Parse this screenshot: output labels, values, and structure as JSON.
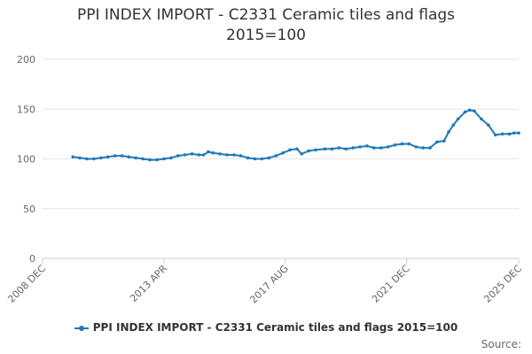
{
  "title_line1": "PPI INDEX IMPORT - C2331 Ceramic tiles and flags",
  "title_line2": "2015=100",
  "source_label": "Source:",
  "colors": {
    "series": "#1f7ab8",
    "grid": "#e6e6e6",
    "axis_text": "#666666"
  },
  "chart_data": {
    "type": "line",
    "title": "PPI INDEX IMPORT - C2331 Ceramic tiles and flags 2015=100",
    "xlabel": "",
    "ylabel": "",
    "ylim": [
      0,
      200
    ],
    "yticks": [
      0,
      50,
      100,
      150,
      200
    ],
    "xlim": [
      "2008 DEC",
      "2025 DEC"
    ],
    "xticks": [
      "2008 DEC",
      "2013 APR",
      "2017 AUG",
      "2021 DEC",
      "2025 DEC"
    ],
    "grid": true,
    "legend_position": "bottom",
    "series": [
      {
        "name": "PPI INDEX IMPORT - C2331 Ceramic tiles and flags 2015=100",
        "points": [
          [
            "2010 JAN",
            102
          ],
          [
            "2010 APR",
            101
          ],
          [
            "2010 JUL",
            100
          ],
          [
            "2010 OCT",
            100
          ],
          [
            "2011 JAN",
            101
          ],
          [
            "2011 APR",
            102
          ],
          [
            "2011 JUL",
            103
          ],
          [
            "2011 OCT",
            103
          ],
          [
            "2012 JAN",
            102
          ],
          [
            "2012 APR",
            101
          ],
          [
            "2012 JUL",
            100
          ],
          [
            "2012 OCT",
            99
          ],
          [
            "2013 JAN",
            99
          ],
          [
            "2013 APR",
            100
          ],
          [
            "2013 JUL",
            101
          ],
          [
            "2013 OCT",
            103
          ],
          [
            "2014 JAN",
            104
          ],
          [
            "2014 APR",
            105
          ],
          [
            "2014 JUL",
            104
          ],
          [
            "2014 SEP",
            104
          ],
          [
            "2014 NOV",
            107
          ],
          [
            "2015 JAN",
            106
          ],
          [
            "2015 APR",
            105
          ],
          [
            "2015 JUL",
            104
          ],
          [
            "2015 OCT",
            104
          ],
          [
            "2016 JAN",
            103
          ],
          [
            "2016 APR",
            101
          ],
          [
            "2016 JUL",
            100
          ],
          [
            "2016 OCT",
            100
          ],
          [
            "2017 JAN",
            101
          ],
          [
            "2017 APR",
            103
          ],
          [
            "2017 JUL",
            106
          ],
          [
            "2017 OCT",
            109
          ],
          [
            "2018 JAN",
            110
          ],
          [
            "2018 MAR",
            105
          ],
          [
            "2018 JUN",
            108
          ],
          [
            "2018 SEP",
            109
          ],
          [
            "2019 JAN",
            110
          ],
          [
            "2019 APR",
            110
          ],
          [
            "2019 JUL",
            111
          ],
          [
            "2019 OCT",
            110
          ],
          [
            "2020 JAN",
            111
          ],
          [
            "2020 APR",
            112
          ],
          [
            "2020 JUL",
            113
          ],
          [
            "2020 OCT",
            111
          ],
          [
            "2021 JAN",
            111
          ],
          [
            "2021 APR",
            112
          ],
          [
            "2021 JUL",
            114
          ],
          [
            "2021 OCT",
            115
          ],
          [
            "2022 JAN",
            115
          ],
          [
            "2022 APR",
            112
          ],
          [
            "2022 JUL",
            111
          ],
          [
            "2022 OCT",
            111
          ],
          [
            "2023 JAN",
            117
          ],
          [
            "2023 APR",
            118
          ],
          [
            "2023 JUN",
            127
          ],
          [
            "2023 AUG",
            134
          ],
          [
            "2023 OCT",
            140
          ],
          [
            "2024 JAN",
            147
          ],
          [
            "2024 MAR",
            149
          ],
          [
            "2024 MAY",
            148
          ],
          [
            "2024 AUG",
            140
          ],
          [
            "2024 NOV",
            134
          ],
          [
            "2025 FEB",
            124
          ],
          [
            "2025 MAY",
            125
          ],
          [
            "2025 AUG",
            125
          ],
          [
            "2025 OCT",
            126
          ],
          [
            "2025 DEC",
            126
          ]
        ]
      }
    ]
  }
}
